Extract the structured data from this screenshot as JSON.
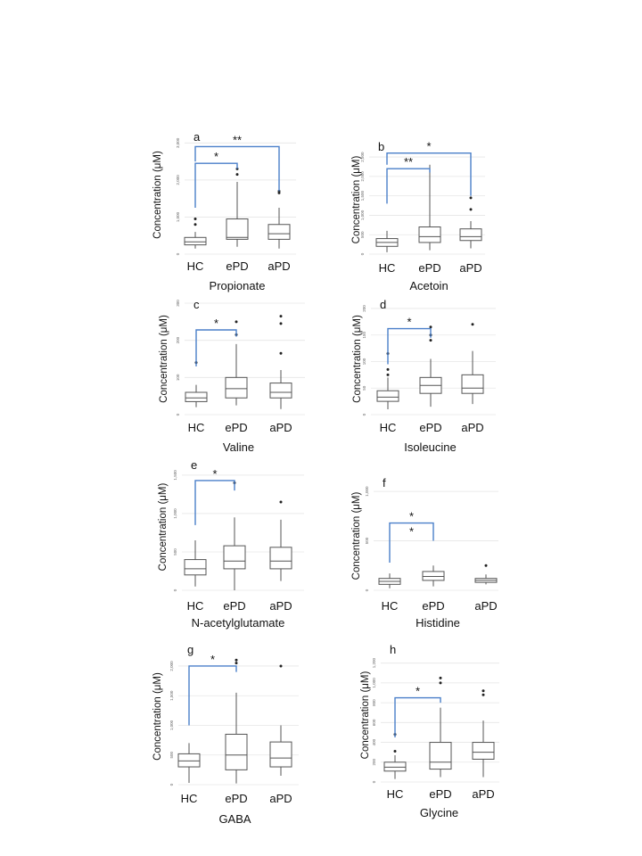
{
  "figure": {
    "colors": {
      "box": "#555555",
      "grid": "#e6e6e6",
      "bracket": "#4a7fc9",
      "text": "#111111"
    }
  },
  "chart_data": [
    {
      "type": "box",
      "panel_label": "a",
      "title": "Propionate",
      "ylabel": "Concentration  (μM)",
      "categories": [
        "HC",
        "ePD",
        "aPD"
      ],
      "ylim": [
        0,
        3200
      ],
      "yticks": [
        0,
        1000,
        2000,
        3000
      ],
      "ytick_labels": [
        "0",
        "1,000",
        "2,000",
        "3,000"
      ],
      "boxes": [
        {
          "min": 150,
          "q1": 250,
          "median": 330,
          "q3": 450,
          "max": 600,
          "outliers": [
            800,
            950
          ]
        },
        {
          "min": 200,
          "q1": 400,
          "median": 450,
          "q3": 950,
          "max": 1950,
          "outliers": [
            2150,
            2300
          ]
        },
        {
          "min": 150,
          "q1": 400,
          "median": 550,
          "q3": 800,
          "max": 1250,
          "outliers": [
            1650,
            1700
          ]
        }
      ],
      "brackets": [
        {
          "from": "HC",
          "to": "ePD",
          "label": "*",
          "y_left": 1250,
          "y_right": 2300,
          "y_top": 2450
        },
        {
          "from": "HC",
          "to": "aPD",
          "label": "**",
          "y_left": 2500,
          "y_right": 1700,
          "y_top": 2900
        }
      ]
    },
    {
      "type": "box",
      "panel_label": "b",
      "title": "Acetoin",
      "ylabel": "Concentration  (μM)",
      "categories": [
        "HC",
        "ePD",
        "aPD"
      ],
      "ylim": [
        0,
        2800
      ],
      "yticks": [
        0,
        500,
        1000,
        1500,
        2000,
        2500
      ],
      "ytick_labels": [
        "0",
        "500",
        "1,000",
        "1,500",
        "2,000",
        "2,500"
      ],
      "boxes": [
        {
          "min": 50,
          "q1": 200,
          "median": 300,
          "q3": 400,
          "max": 600,
          "outliers": []
        },
        {
          "min": 100,
          "q1": 300,
          "median": 450,
          "q3": 700,
          "max": 2300,
          "outliers": []
        },
        {
          "min": 150,
          "q1": 350,
          "median": 450,
          "q3": 650,
          "max": 850,
          "outliers": [
            1150,
            1450
          ]
        }
      ],
      "brackets": [
        {
          "from": "HC",
          "to": "ePD",
          "label": "**",
          "y_left": 1300,
          "y_right": 2100,
          "y_top": 2200
        },
        {
          "from": "HC",
          "to": "aPD",
          "label": "*",
          "y_left": 2300,
          "y_right": 1500,
          "y_top": 2600
        }
      ]
    },
    {
      "type": "box",
      "panel_label": "c",
      "title": "Valine",
      "ylabel": "Concentration  (μM)",
      "categories": [
        "HC",
        "ePD",
        "aPD"
      ],
      "ylim": [
        0,
        300
      ],
      "yticks": [
        0,
        100,
        200,
        300
      ],
      "ytick_labels": [
        "0",
        "100",
        "200",
        "300"
      ],
      "boxes": [
        {
          "min": 20,
          "q1": 35,
          "median": 45,
          "q3": 60,
          "max": 80,
          "outliers": [
            140
          ]
        },
        {
          "min": 25,
          "q1": 45,
          "median": 70,
          "q3": 100,
          "max": 190,
          "outliers": [
            215,
            250
          ]
        },
        {
          "min": 15,
          "q1": 45,
          "median": 60,
          "q3": 85,
          "max": 120,
          "outliers": [
            165,
            245,
            265
          ]
        }
      ],
      "brackets": [
        {
          "from": "HC",
          "to": "ePD",
          "label": "*",
          "y_left": 130,
          "y_right": 210,
          "y_top": 228
        }
      ]
    },
    {
      "type": "box",
      "panel_label": "d",
      "title": "Isoleucine",
      "ylabel": "Concentration  (μM)",
      "categories": [
        "HC",
        "ePD",
        "aPD"
      ],
      "ylim": [
        0,
        210
      ],
      "yticks": [
        0,
        50,
        100,
        150,
        200
      ],
      "ytick_labels": [
        "0",
        "50",
        "100",
        "150",
        "200"
      ],
      "boxes": [
        {
          "min": 10,
          "q1": 25,
          "median": 33,
          "q3": 45,
          "max": 70,
          "outliers": [
            75,
            85,
            115
          ]
        },
        {
          "min": 15,
          "q1": 40,
          "median": 55,
          "q3": 70,
          "max": 105,
          "outliers": [
            140,
            150,
            165
          ]
        },
        {
          "min": 20,
          "q1": 40,
          "median": 50,
          "q3": 75,
          "max": 120,
          "outliers": [
            170
          ]
        }
      ],
      "brackets": [
        {
          "from": "HC",
          "to": "ePD",
          "label": "*",
          "y_left": 95,
          "y_right": 145,
          "y_top": 162
        }
      ]
    },
    {
      "type": "box",
      "panel_label": "e",
      "title": "N-acetylglutamate",
      "ylabel": "Concentration  (μM)",
      "categories": [
        "HC",
        "ePD",
        "aPD"
      ],
      "ylim": [
        0,
        1650
      ],
      "yticks": [
        0,
        500,
        1000,
        1500
      ],
      "ytick_labels": [
        "0",
        "500",
        "1,000",
        "1,500"
      ],
      "boxes": [
        {
          "min": 50,
          "q1": 200,
          "median": 280,
          "q3": 400,
          "max": 650,
          "outliers": []
        },
        {
          "min": 0,
          "q1": 280,
          "median": 380,
          "q3": 580,
          "max": 950,
          "outliers": [
            1400
          ]
        },
        {
          "min": 120,
          "q1": 280,
          "median": 380,
          "q3": 560,
          "max": 920,
          "outliers": [
            1150
          ]
        }
      ],
      "brackets": [
        {
          "from": "HC",
          "to": "ePD",
          "label": "*",
          "y_left": 850,
          "y_right": 1300,
          "y_top": 1430
        }
      ]
    },
    {
      "type": "box",
      "panel_label": "f",
      "title": "Histidine",
      "ylabel": "Concentration  (μM)",
      "categories": [
        "HC",
        "ePD",
        "aPD"
      ],
      "ylim": [
        0,
        1100
      ],
      "yticks": [
        0,
        500,
        1000
      ],
      "ytick_labels": [
        "0",
        "500",
        "1,000"
      ],
      "boxes": [
        {
          "min": 20,
          "q1": 60,
          "median": 90,
          "q3": 120,
          "max": 170,
          "outliers": []
        },
        {
          "min": 40,
          "q1": 100,
          "median": 140,
          "q3": 190,
          "max": 250,
          "outliers": []
        },
        {
          "min": 60,
          "q1": 80,
          "median": 100,
          "q3": 120,
          "max": 160,
          "outliers": [
            250
          ]
        }
      ],
      "brackets": [
        {
          "from": "HC",
          "to": "ePD",
          "label": "*",
          "y_left": 280,
          "y_right": 500,
          "y_top": 680,
          "extra_label": "*"
        }
      ]
    },
    {
      "type": "box",
      "panel_label": "g",
      "title": "GABA",
      "ylabel": "Concentration  (μM)",
      "categories": [
        "HC",
        "ePD",
        "aPD"
      ],
      "ylim": [
        0,
        2300
      ],
      "yticks": [
        0,
        500,
        1000,
        1500,
        2000
      ],
      "ytick_labels": [
        "0",
        "500",
        "1,000",
        "1,500",
        "2,000"
      ],
      "boxes": [
        {
          "min": 30,
          "q1": 300,
          "median": 400,
          "q3": 520,
          "max": 700,
          "outliers": []
        },
        {
          "min": 20,
          "q1": 250,
          "median": 500,
          "q3": 850,
          "max": 1550,
          "outliers": [
            2050,
            2100
          ]
        },
        {
          "min": 150,
          "q1": 300,
          "median": 450,
          "q3": 720,
          "max": 1000,
          "outliers": [
            2000
          ]
        }
      ],
      "brackets": [
        {
          "from": "HC",
          "to": "ePD",
          "label": "*",
          "y_left": 1000,
          "y_right": 1900,
          "y_top": 2000
        }
      ]
    },
    {
      "type": "box",
      "panel_label": "h",
      "title": "Glycine",
      "ylabel": "Concentration  (μM)",
      "categories": [
        "HC",
        "ePD",
        "aPD"
      ],
      "ylim": [
        0,
        1350
      ],
      "yticks": [
        0,
        200,
        400,
        600,
        800,
        1000,
        1200
      ],
      "ytick_labels": [
        "0",
        "200",
        "400",
        "600",
        "800",
        "1,000",
        "1,200"
      ],
      "boxes": [
        {
          "min": 30,
          "q1": 110,
          "median": 150,
          "q3": 200,
          "max": 270,
          "outliers": [
            310,
            480
          ]
        },
        {
          "min": 50,
          "q1": 130,
          "median": 200,
          "q3": 400,
          "max": 750,
          "outliers": [
            1000,
            1050
          ]
        },
        {
          "min": 50,
          "q1": 230,
          "median": 300,
          "q3": 400,
          "max": 620,
          "outliers": [
            880,
            920
          ]
        }
      ],
      "brackets": [
        {
          "from": "HC",
          "to": "ePD",
          "label": "*",
          "y_left": 450,
          "y_right": 800,
          "y_top": 850
        }
      ]
    }
  ]
}
